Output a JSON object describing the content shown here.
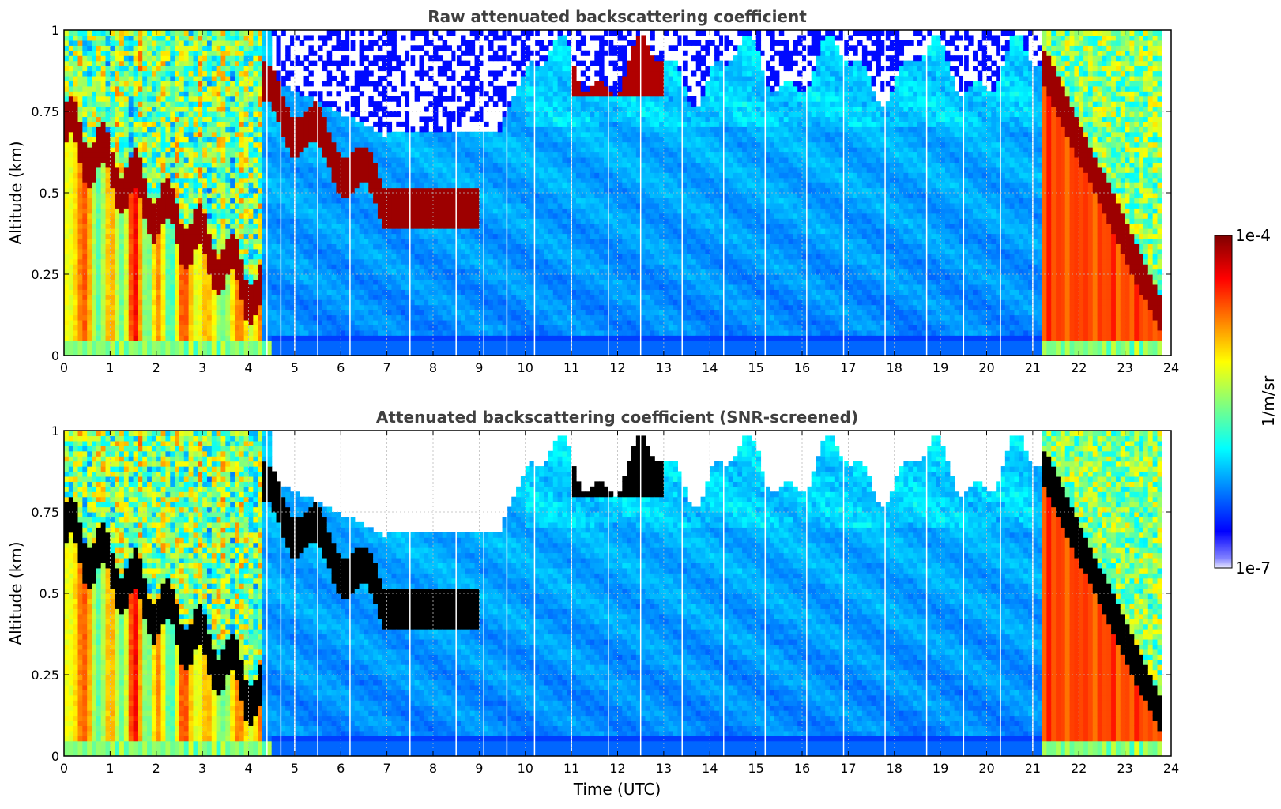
{
  "chart_data": [
    {
      "type": "heatmap",
      "id": "raw",
      "title": "Raw attenuated backscattering coefficient",
      "xlabel": "",
      "ylabel": "Altitude (km)",
      "xlim": [
        0,
        24
      ],
      "ylim": [
        0,
        1
      ],
      "x_ticks": [
        "0",
        "1",
        "2",
        "3",
        "4",
        "5",
        "6",
        "7",
        "8",
        "9",
        "10",
        "11",
        "12",
        "13",
        "14",
        "15",
        "16",
        "17",
        "18",
        "19",
        "20",
        "21",
        "22",
        "23",
        "24"
      ],
      "y_ticks": [
        "0",
        "0.25",
        "0.5",
        "0.75",
        "1"
      ],
      "grid": true,
      "screened": false
    },
    {
      "type": "heatmap",
      "id": "screened",
      "title": "Attenuated backscattering coefficient (SNR-screened)",
      "xlabel": "Time (UTC)",
      "ylabel": "Altitude (km)",
      "xlim": [
        0,
        24
      ],
      "ylim": [
        0,
        1
      ],
      "x_ticks": [
        "0",
        "1",
        "2",
        "3",
        "4",
        "5",
        "6",
        "7",
        "8",
        "9",
        "10",
        "11",
        "12",
        "13",
        "14",
        "15",
        "16",
        "17",
        "18",
        "19",
        "20",
        "21",
        "22",
        "23",
        "24"
      ],
      "y_ticks": [
        "0",
        "0.25",
        "0.5",
        "0.75",
        "1"
      ],
      "grid": true,
      "screened": true
    }
  ],
  "colorbar": {
    "label": "1/m/sr",
    "max_label": "1e-4",
    "min_label": "1e-7",
    "colormap": "jet"
  }
}
